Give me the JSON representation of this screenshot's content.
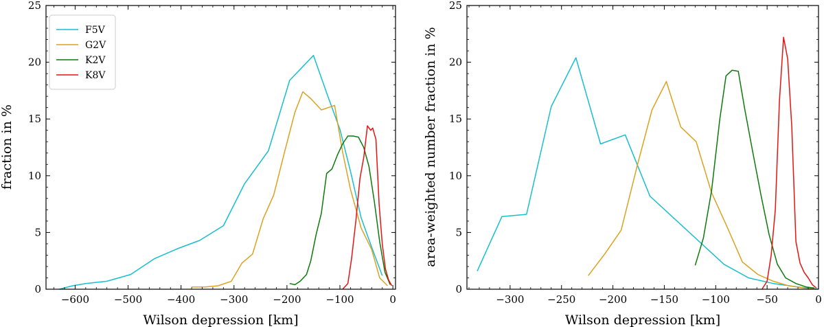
{
  "chart_data": [
    {
      "type": "line",
      "xlabel": "Wilson depression [km]",
      "ylabel": "fraction in %",
      "xlim": [
        -655,
        5
      ],
      "ylim": [
        0,
        25
      ],
      "xticks": [
        -600,
        -500,
        -400,
        -300,
        -200,
        -100,
        0
      ],
      "yticks": [
        0,
        5,
        10,
        15,
        20,
        25
      ],
      "legend": "top-left",
      "series": [
        {
          "name": "F5V",
          "color": "#17becf",
          "x": [
            -630,
            -605,
            -580,
            -540,
            -495,
            -450,
            -405,
            -365,
            -320,
            -280,
            -235,
            -195,
            -150,
            -125,
            -100,
            -80,
            -60,
            -40,
            -20
          ],
          "y": [
            0,
            0.3,
            0.5,
            0.7,
            1.3,
            2.7,
            3.6,
            4.3,
            5.6,
            9.3,
            12.2,
            18.4,
            20.6,
            17.3,
            14.1,
            10.4,
            6.3,
            3.7,
            1.2
          ]
        },
        {
          "name": "G2V",
          "color": "#dba120",
          "x": [
            -380,
            -355,
            -330,
            -305,
            -285,
            -265,
            -245,
            -225,
            -205,
            -185,
            -170,
            -155,
            -135,
            -110,
            -95,
            -80,
            -60,
            -40,
            -25,
            -10
          ],
          "y": [
            0.2,
            0.2,
            0.3,
            0.7,
            2.3,
            3.1,
            6.2,
            8.3,
            12.0,
            15.6,
            17.4,
            16.8,
            15.8,
            16.2,
            12.1,
            8.8,
            5.4,
            3.5,
            1.0,
            0.3
          ]
        },
        {
          "name": "K2V",
          "color": "#0a7a0a",
          "x": [
            -195,
            -185,
            -175,
            -163,
            -155,
            -145,
            -135,
            -125,
            -115,
            -105,
            -95,
            -85,
            -75,
            -65,
            -55,
            -45,
            -35,
            -25,
            -15,
            -5
          ],
          "y": [
            0.5,
            0.4,
            0.7,
            1.3,
            2.5,
            4.8,
            6.7,
            10.2,
            10.6,
            11.8,
            12.8,
            13.5,
            13.5,
            13.4,
            12.5,
            10.8,
            7.7,
            4.2,
            1.5,
            0.4
          ]
        },
        {
          "name": "K8V",
          "color": "#e8110f",
          "x": [
            -95,
            -85,
            -78,
            -70,
            -62,
            -55,
            -48,
            -42,
            -38,
            -32,
            -26,
            -20,
            -14,
            -8,
            -2
          ],
          "y": [
            0,
            0.5,
            2.7,
            6.0,
            9.8,
            11.6,
            14.4,
            14.0,
            14.2,
            13.2,
            7.5,
            4.0,
            1.8,
            0.8,
            0.3
          ]
        }
      ]
    },
    {
      "type": "line",
      "xlabel": "Wilson depression [km]",
      "ylabel": "area-weighted number fraction in %",
      "xlim": [
        -342,
        0
      ],
      "ylim": [
        0,
        25
      ],
      "xticks": [
        -300,
        -250,
        -200,
        -150,
        -100,
        -50,
        0
      ],
      "yticks": [
        0,
        5,
        10,
        15,
        20,
        25
      ],
      "series": [
        {
          "name": "F5V",
          "color": "#17becf",
          "x": [
            -332,
            -308,
            -284,
            -260,
            -236,
            -212,
            -188,
            -164,
            -140,
            -116,
            -92,
            -68,
            -44,
            -20,
            0
          ],
          "y": [
            1.6,
            6.4,
            6.6,
            16.1,
            20.4,
            12.8,
            13.6,
            8.2,
            6.2,
            4.2,
            2.2,
            1.0,
            0.5,
            0.2,
            0.0
          ]
        },
        {
          "name": "G2V",
          "color": "#dba120",
          "x": [
            -224,
            -208,
            -192,
            -176,
            -162,
            -148,
            -134,
            -119,
            -104,
            -89,
            -74,
            -59,
            -44,
            -29,
            -14,
            -4
          ],
          "y": [
            1.2,
            3.1,
            5.2,
            11.0,
            15.8,
            18.3,
            14.3,
            13.0,
            8.5,
            5.5,
            2.4,
            1.3,
            0.7,
            0.3,
            0.1,
            0.0
          ]
        },
        {
          "name": "K2V",
          "color": "#0a7a0a",
          "x": [
            -120,
            -112,
            -104,
            -96,
            -90,
            -84,
            -78,
            -72,
            -64,
            -56,
            -48,
            -40,
            -32,
            -22,
            -12,
            -4
          ],
          "y": [
            2.1,
            4.5,
            8.7,
            15.0,
            18.8,
            19.3,
            19.2,
            16.0,
            12.1,
            8.3,
            4.8,
            2.2,
            1.0,
            0.5,
            0.2,
            0.1
          ]
        },
        {
          "name": "K8V",
          "color": "#e8110f",
          "x": [
            -55,
            -50,
            -46,
            -42,
            -38,
            -34,
            -30,
            -26,
            -22,
            -18,
            -14,
            -10,
            -6,
            -2
          ],
          "y": [
            0,
            0.7,
            3.0,
            7.0,
            16.6,
            22.2,
            20.3,
            14.3,
            4.2,
            2.3,
            1.5,
            1.0,
            0.4,
            0.1
          ]
        }
      ]
    }
  ]
}
